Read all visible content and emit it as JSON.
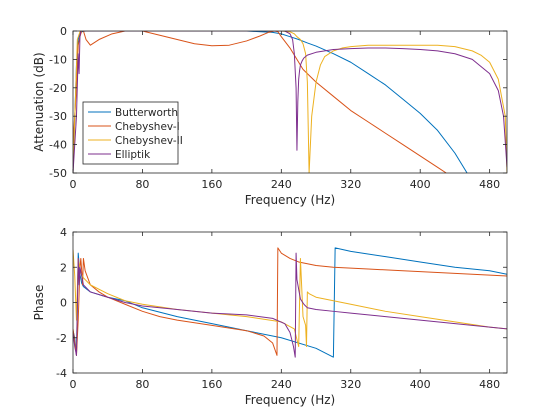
{
  "colors": {
    "series": [
      "#0072BD",
      "#D95319",
      "#EDB120",
      "#7E2F8E"
    ],
    "axis": "#262626",
    "background": "#ffffff"
  },
  "chart_data": [
    {
      "type": "line",
      "xlabel": "Frequency (Hz)",
      "ylabel": "Attenuation (dB)",
      "xlim": [
        0,
        500
      ],
      "ylim": [
        -50,
        0
      ],
      "xticks": [
        0,
        80,
        160,
        240,
        320,
        400,
        480
      ],
      "yticks": [
        -50,
        -40,
        -30,
        -20,
        -10,
        0
      ],
      "grid": false,
      "legend": {
        "position": "lower-left",
        "entries": [
          "Butterworth",
          "Chebyshev-I",
          "Chebyshev-II",
          "Elliptik"
        ]
      },
      "series": [
        {
          "name": "Butterworth",
          "x": [
            0,
            4,
            6,
            8,
            10,
            12,
            15,
            20,
            40,
            80,
            160,
            200,
            230,
            240,
            250,
            260,
            270,
            280,
            300,
            320,
            340,
            360,
            380,
            400,
            420,
            440,
            454
          ],
          "y": [
            -50,
            -12,
            -3,
            -1,
            -0.3,
            -0.1,
            0,
            0,
            0,
            0,
            0,
            0,
            -0.5,
            -1,
            -2,
            -3,
            -4.2,
            -5.3,
            -8,
            -11,
            -15,
            -19,
            -24,
            -29,
            -35,
            -43,
            -50
          ]
        },
        {
          "name": "Chebyshev-I",
          "x": [
            0,
            4,
            6,
            8,
            10,
            12,
            15,
            20,
            30,
            45,
            60,
            80,
            100,
            120,
            140,
            160,
            180,
            200,
            215,
            225,
            232,
            236,
            240,
            250,
            260,
            265,
            270,
            280,
            300,
            320,
            340,
            360,
            380,
            400,
            420,
            430
          ],
          "y": [
            -40,
            -20,
            -5,
            -2,
            0,
            0,
            -3,
            -5,
            -3,
            -1,
            0,
            0,
            -1.5,
            -3,
            -4.5,
            -5.2,
            -5,
            -3.5,
            -1.8,
            -0.5,
            0,
            -0.2,
            -2,
            -6,
            -11,
            -13.5,
            -15,
            -18,
            -23,
            -28,
            -32,
            -36,
            -40,
            -44,
            -48,
            -50
          ]
        },
        {
          "name": "Chebyshev-II",
          "x": [
            0,
            5,
            8,
            10,
            12,
            15,
            20,
            40,
            80,
            160,
            240,
            250,
            255,
            258,
            262,
            265,
            268,
            270,
            272,
            275,
            280,
            285,
            290,
            300,
            310,
            320,
            340,
            360,
            380,
            400,
            420,
            440,
            460,
            470,
            480,
            490,
            498,
            500
          ],
          "y": [
            -50,
            -3,
            -0.3,
            0,
            0,
            0,
            0,
            0,
            0,
            0,
            0,
            -0.3,
            -1,
            -2,
            -3,
            -4.5,
            -8,
            -18,
            -50,
            -30,
            -18,
            -12,
            -9,
            -7,
            -6,
            -5.5,
            -5,
            -5,
            -5,
            -5,
            -5,
            -5.5,
            -7,
            -8.5,
            -11,
            -17,
            -30,
            -50
          ]
        },
        {
          "name": "Elliptik",
          "x": [
            0,
            4,
            6,
            7,
            8,
            9,
            10,
            12,
            20,
            40,
            80,
            160,
            230,
            244,
            250,
            253,
            255,
            257,
            258,
            259,
            260,
            261,
            262,
            264,
            266,
            270,
            280,
            300,
            320,
            340,
            360,
            380,
            400,
            420,
            440,
            460,
            480,
            490,
            496,
            500
          ],
          "y": [
            -50,
            -30,
            -8,
            -15,
            -2,
            0,
            0,
            0,
            0,
            0,
            0,
            0,
            0,
            0,
            -1,
            -3,
            -8,
            -20,
            -42,
            -25,
            -17,
            -14,
            -12,
            -10.5,
            -9.5,
            -8.5,
            -7.5,
            -6.5,
            -6.2,
            -6,
            -6,
            -6.2,
            -6.5,
            -7,
            -8,
            -10,
            -15,
            -21,
            -30,
            -48
          ]
        }
      ]
    },
    {
      "type": "line",
      "xlabel": "Frequency (Hz)",
      "ylabel": "Phase",
      "xlim": [
        0,
        500
      ],
      "ylim": [
        -4,
        4
      ],
      "xticks": [
        0,
        80,
        160,
        240,
        320,
        400,
        480
      ],
      "yticks": [
        -4,
        -2,
        0,
        2,
        4
      ],
      "grid": false,
      "series": [
        {
          "name": "Butterworth",
          "x": [
            0,
            2,
            4,
            6,
            8,
            10,
            12,
            20,
            40,
            60,
            80,
            120,
            160,
            200,
            240,
            280,
            300,
            302,
            320,
            360,
            400,
            440,
            480,
            500
          ],
          "y": [
            -1.6,
            -2,
            -3,
            2.8,
            1.6,
            1.1,
            0.9,
            0.6,
            0.3,
            0.1,
            -0.3,
            -0.8,
            -1.2,
            -1.6,
            -2,
            -2.6,
            -3.1,
            3.1,
            2.9,
            2.6,
            2.3,
            2,
            1.8,
            1.6
          ]
        },
        {
          "name": "Chebyshev-I",
          "x": [
            0,
            2,
            4,
            6,
            7,
            8,
            9,
            10,
            11,
            12,
            14,
            20,
            30,
            40,
            60,
            80,
            100,
            120,
            160,
            200,
            220,
            230,
            235,
            236,
            240,
            250,
            260,
            280,
            300,
            340,
            380,
            420,
            460,
            500
          ],
          "y": [
            -1.5,
            -2.2,
            -3,
            -1,
            0.5,
            2,
            2.5,
            1.8,
            1,
            2.5,
            1.8,
            1,
            0.6,
            0.3,
            -0.1,
            -0.5,
            -0.8,
            -1,
            -1.3,
            -1.6,
            -1.9,
            -2.3,
            -3,
            3.1,
            2.8,
            2.5,
            2.3,
            2.1,
            2,
            1.9,
            1.8,
            1.7,
            1.6,
            1.5
          ]
        },
        {
          "name": "Chebyshev-II",
          "x": [
            0,
            2,
            4,
            6,
            8,
            10,
            12,
            20,
            40,
            60,
            80,
            120,
            160,
            200,
            240,
            255,
            260,
            262,
            265,
            268,
            269,
            270,
            272,
            280,
            300,
            320,
            360,
            400,
            440,
            480,
            500
          ],
          "y": [
            3,
            1.5,
            -1,
            2.5,
            1.9,
            1.6,
            1.4,
            1,
            0.5,
            0.1,
            -0.1,
            -0.4,
            -0.6,
            -0.8,
            -1.1,
            -1.5,
            -2.5,
            2.5,
            -0.8,
            -1.3,
            -2.5,
            0.6,
            0.5,
            0.3,
            0.1,
            -0.1,
            -0.5,
            -0.8,
            -1.1,
            -1.4,
            -1.5
          ]
        },
        {
          "name": "Elliptik",
          "x": [
            0,
            2,
            4,
            6,
            7,
            8,
            10,
            12,
            20,
            40,
            60,
            80,
            120,
            160,
            200,
            230,
            244,
            250,
            254,
            256,
            257,
            258,
            262,
            266,
            270,
            280,
            300,
            320,
            360,
            400,
            440,
            480,
            500
          ],
          "y": [
            -1.7,
            -2.5,
            -3,
            2.5,
            1,
            2,
            1.5,
            1,
            0.6,
            0.3,
            0,
            -0.2,
            -0.4,
            -0.6,
            -0.7,
            -0.9,
            -1.2,
            -1.7,
            -2.5,
            -3.1,
            2.8,
            1.3,
            0.2,
            -0.1,
            -0.3,
            -0.4,
            -0.5,
            -0.6,
            -0.8,
            -1,
            -1.2,
            -1.4,
            -1.5
          ]
        }
      ]
    }
  ]
}
